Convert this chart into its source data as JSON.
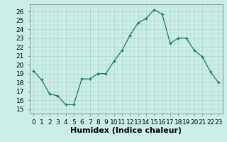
{
  "x": [
    0,
    1,
    2,
    3,
    4,
    5,
    6,
    7,
    8,
    9,
    10,
    11,
    12,
    13,
    14,
    15,
    16,
    17,
    18,
    19,
    20,
    21,
    22,
    23
  ],
  "y": [
    19.3,
    18.3,
    16.7,
    16.5,
    15.5,
    15.5,
    18.4,
    18.4,
    19.0,
    19.0,
    20.4,
    21.6,
    23.3,
    24.7,
    25.2,
    26.2,
    25.7,
    22.4,
    23.0,
    23.0,
    21.6,
    20.9,
    19.2,
    18.0
  ],
  "ylim": [
    15,
    26.8
  ],
  "yticks": [
    15,
    16,
    17,
    18,
    19,
    20,
    21,
    22,
    23,
    24,
    25,
    26
  ],
  "xlim": [
    -0.5,
    23.5
  ],
  "xticks": [
    0,
    1,
    2,
    3,
    4,
    5,
    6,
    7,
    8,
    9,
    10,
    11,
    12,
    13,
    14,
    15,
    16,
    17,
    18,
    19,
    20,
    21,
    22,
    23
  ],
  "xlabel": "Humidex (Indice chaleur)",
  "line_color": "#1a7a5e",
  "marker_color": "#1a7a5e",
  "bg_color": "#cceee8",
  "grid_color": "#aad4cc",
  "text_color": "#000000",
  "xlabel_fontsize": 8,
  "tick_fontsize": 6.5
}
